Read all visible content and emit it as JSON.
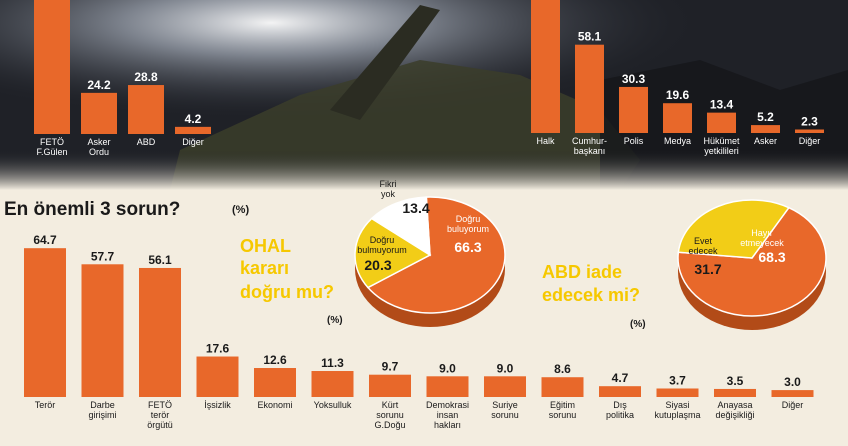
{
  "colors": {
    "bar": "#e8682a",
    "yellow": "#f2cd17",
    "dark": "#1a1a1a",
    "paper": "#f3ede0",
    "photo": "#1e2025"
  },
  "chart_data": [
    {
      "type": "bar",
      "categories": [
        "FETÖ F.Gülen",
        "Asker Ordu",
        "ABD",
        "Diğer"
      ],
      "values": [
        null,
        24.2,
        28.8,
        4.2
      ],
      "labels": [
        "",
        "24.2",
        "28.8",
        "4.2"
      ]
    },
    {
      "type": "bar",
      "categories": [
        "Halk",
        "Cumhur-başkanı",
        "Polis",
        "Medya",
        "Hükümet yetkilileri",
        "Asker",
        "Diğer"
      ],
      "values": [
        null,
        58.1,
        30.3,
        19.6,
        13.4,
        5.2,
        2.3
      ],
      "labels": [
        "",
        "58.1",
        "30.3",
        "19.6",
        "13.4",
        "5.2",
        "2.3"
      ]
    },
    {
      "type": "bar",
      "title": "En önemli 3 sorun?",
      "unit": "(%)",
      "categories": [
        "Terör",
        "Darbe girişimi",
        "FETÖ terör örgütü",
        "İşsizlik",
        "Ekonomi",
        "Yoksulluk",
        "Kürt sorunu G.Doğu",
        "Demokrasi insan hakları",
        "Suriye sorunu",
        "Eğitim sorunu",
        "Dış politika",
        "Siyasi kutuplaşma",
        "Anayasa değişikliği",
        "Diğer"
      ],
      "values": [
        64.7,
        57.7,
        56.1,
        17.6,
        12.6,
        11.3,
        9.7,
        9.0,
        9.0,
        8.6,
        4.7,
        3.7,
        3.5,
        3.0
      ],
      "labels": [
        "64.7",
        "57.7",
        "56.1",
        "17.6",
        "12.6",
        "11.3",
        "9.7",
        "9.0",
        "9.0",
        "8.6",
        "4.7",
        "3.7",
        "3.5",
        "3.0"
      ]
    },
    {
      "type": "pie",
      "title": "OHAL kararı doğru mu?",
      "unit": "(%)",
      "slices": [
        {
          "name": "Doğru buluyorum",
          "value": 66.3,
          "label": "66.3"
        },
        {
          "name": "Doğru bulmuyorum",
          "value": 20.3,
          "label": "20.3"
        },
        {
          "name": "Fikri yok",
          "value": 13.4,
          "label": "13.4"
        }
      ]
    },
    {
      "type": "pie",
      "title": "ABD iade edecek mi?",
      "unit": "(%)",
      "slices": [
        {
          "name": "Hayır etmeyecek",
          "value": 68.3,
          "label": "68.3"
        },
        {
          "name": "Evet edecek",
          "value": 31.7,
          "label": "31.7"
        }
      ]
    }
  ]
}
